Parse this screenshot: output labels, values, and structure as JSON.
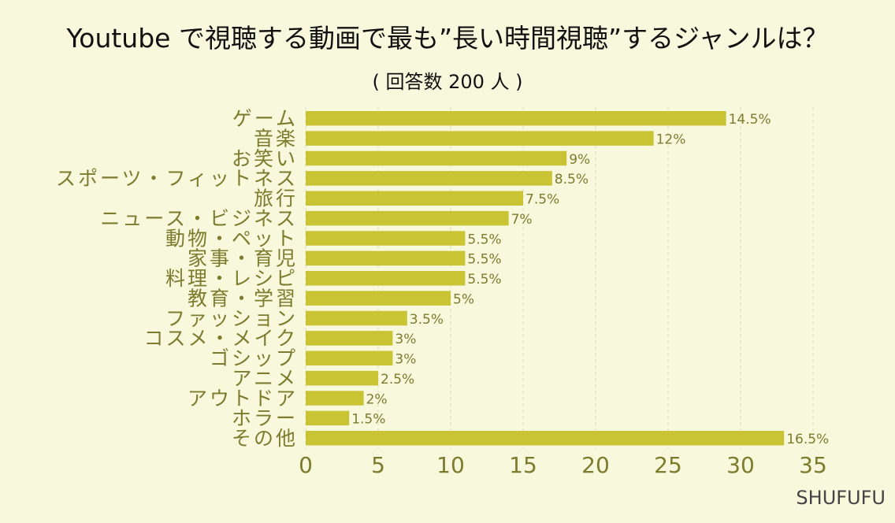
{
  "chart_data": {
    "type": "bar",
    "orientation": "horizontal",
    "title": "Youtube で視聴する動画で最も”長い時間視聴”するジャンルは？",
    "subtitle": "( 回答数 200 人 )",
    "categories": [
      "ゲーム",
      "音楽",
      "お笑い",
      "スポーツ・フィットネス",
      "旅行",
      "ニュース・ビジネス",
      "動物・ペット",
      "家事・育児",
      "料理・レシピ",
      "教育・学習",
      "ファッション",
      "コスメ・メイク",
      "ゴシップ",
      "アニメ",
      "アウトドア",
      "ホラー",
      "その他"
    ],
    "values": [
      29,
      24,
      18,
      17,
      15,
      14,
      11,
      11,
      11,
      10,
      7,
      6,
      6,
      5,
      4,
      3,
      33
    ],
    "data_labels": [
      "14.5%",
      "12%",
      "9%",
      "8.5%",
      "7.5%",
      "7%",
      "5.5%",
      "5.5%",
      "5.5%",
      "5%",
      "3.5%",
      "3%",
      "3%",
      "2.5%",
      "2%",
      "1.5%",
      "16.5%"
    ],
    "xlim": [
      0,
      35
    ],
    "xticks": [
      "0",
      "5",
      "10",
      "15",
      "20",
      "25",
      "30",
      "35"
    ],
    "xtick_values": [
      0,
      5,
      10,
      15,
      20,
      25,
      30,
      35
    ],
    "grid": true,
    "xlabel": "",
    "ylabel": "",
    "colors": {
      "bar": "#c8c433",
      "text": "#7d7c2e",
      "grid": "#dcdcc0"
    }
  },
  "brand": "SHUFUFU"
}
